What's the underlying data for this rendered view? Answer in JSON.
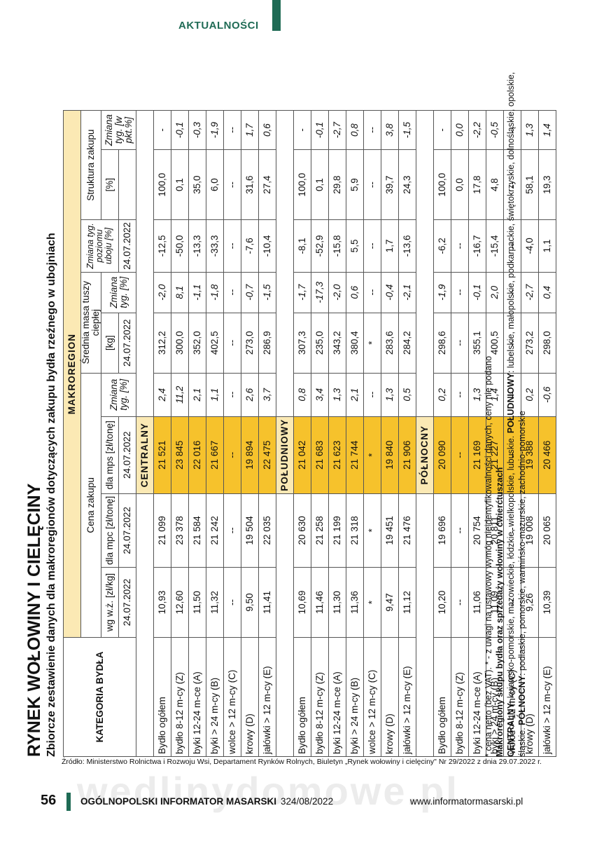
{
  "header": {
    "section": "AKTUALNOŚCI"
  },
  "title": "RYNEK WOŁOWINY I CIELĘCINY",
  "subtitle": "Zbiorcze zestawienie danych dla makroregionów dotyczących zakupu bydła rzeźnego w ubojniach",
  "table": {
    "kategoria": "KATEGORIA BYDŁA",
    "cena_zakupu": "Cena zakupu",
    "makroregion": "MAKROREGION",
    "srednia_masa": "Średnia masa tuszy ciepłej",
    "zmiana_poziomu": "Zmiana tyg. poziomu uboju [%]",
    "struktura": "Struktura zakupu",
    "col_wgwz": "wg w.ż. [zł/kg]",
    "col_mpc": "dla mpc [zł/tonę]",
    "col_mps": "dla mps [zł/tonę]",
    "col_zmiana_pct": "Zmiana tyg. [%]",
    "col_kg": "[kg]",
    "col_zmiana_tyg": "Zmiana tyg. [%]",
    "col_pct": "[%]",
    "col_zmiana_pkt": "Zmiana tyg. [w pkt.%]",
    "date": "24.07.2022",
    "regions": [
      {
        "name": "CENTRALNY",
        "rows": [
          {
            "cat": "Bydło ogółem",
            "c1": "10,93",
            "c2": "21 099",
            "c3": "21 521",
            "c4": "2,4",
            "c5": "312,2",
            "c6": "-2,0",
            "c7": "-12,5",
            "c8": "100,0",
            "c9": "-"
          },
          {
            "cat": "bydło 8-12 m-cy (Z)",
            "c1": "12,60",
            "c2": "23 378",
            "c3": "23 845",
            "c4": "11,2",
            "c5": "300,0",
            "c6": "8,1",
            "c7": "-50,0",
            "c8": "0,1",
            "c9": "-0,1"
          },
          {
            "cat": "byki 12-24 m-ce (A)",
            "c1": "11,50",
            "c2": "21 584",
            "c3": "22 016",
            "c4": "2,1",
            "c5": "352,0",
            "c6": "-1,1",
            "c7": "-13,3",
            "c8": "35,0",
            "c9": "-0,3"
          },
          {
            "cat": "byki > 24 m-cy (B)",
            "c1": "11,32",
            "c2": "21 242",
            "c3": "21 667",
            "c4": "1,1",
            "c5": "402,5",
            "c6": "-1,8",
            "c7": "-33,3",
            "c8": "6,0",
            "c9": "-1,9"
          },
          {
            "cat": "wolce > 12 m-cy (C)",
            "c1": "--",
            "c2": "--",
            "c3": "--",
            "c4": "--",
            "c5": "--",
            "c6": "--",
            "c7": "--",
            "c8": "--",
            "c9": "--"
          },
          {
            "cat": "krowy (D)",
            "c1": "9,50",
            "c2": "19 504",
            "c3": "19 894",
            "c4": "2,6",
            "c5": "273,0",
            "c6": "-0,7",
            "c7": "-7,6",
            "c8": "31,6",
            "c9": "1,7"
          },
          {
            "cat": "jałówki > 12 m-cy (E)",
            "c1": "11,41",
            "c2": "22 035",
            "c3": "22 475",
            "c4": "3,7",
            "c5": "286,9",
            "c6": "-1,5",
            "c7": "-10,4",
            "c8": "27,4",
            "c9": "0,6"
          }
        ]
      },
      {
        "name": "POŁUDNIOWY",
        "rows": [
          {
            "cat": "Bydło ogółem",
            "c1": "10,69",
            "c2": "20 630",
            "c3": "21 042",
            "c4": "0,8",
            "c5": "307,3",
            "c6": "-1,7",
            "c7": "-8,1",
            "c8": "100,0",
            "c9": "-"
          },
          {
            "cat": "bydło 8-12 m-cy (Z)",
            "c1": "11,46",
            "c2": "21 258",
            "c3": "21 683",
            "c4": "3,4",
            "c5": "235,0",
            "c6": "-17,3",
            "c7": "-52,9",
            "c8": "0,1",
            "c9": "-0,1"
          },
          {
            "cat": "byki 12-24 m-ce (A)",
            "c1": "11,30",
            "c2": "21 199",
            "c3": "21 623",
            "c4": "1,3",
            "c5": "343,2",
            "c6": "-2,0",
            "c7": "-15,8",
            "c8": "29,8",
            "c9": "-2,7"
          },
          {
            "cat": "byki > 24 m-cy (B)",
            "c1": "11,36",
            "c2": "21 318",
            "c3": "21 744",
            "c4": "2,1",
            "c5": "380,4",
            "c6": "0,6",
            "c7": "5,5",
            "c8": "5,9",
            "c9": "0,8"
          },
          {
            "cat": "wolce > 12 m-cy (C)",
            "c1": "*",
            "c2": "*",
            "c3": "*",
            "c4": "--",
            "c5": "*",
            "c6": "--",
            "c7": "--",
            "c8": "--",
            "c9": "--"
          },
          {
            "cat": "krowy (D)",
            "c1": "9,47",
            "c2": "19 451",
            "c3": "19 840",
            "c4": "1,3",
            "c5": "283,6",
            "c6": "-0,4",
            "c7": "1,7",
            "c8": "39,7",
            "c9": "3,8"
          },
          {
            "cat": "jałówki > 12 m-cy (E)",
            "c1": "11,12",
            "c2": "21 476",
            "c3": "21 906",
            "c4": "0,5",
            "c5": "284,2",
            "c6": "-2,1",
            "c7": "-13,6",
            "c8": "24,3",
            "c9": "-1,5"
          }
        ]
      },
      {
        "name": "PÓŁNOCNY",
        "rows": [
          {
            "cat": "Bydło ogółem",
            "c1": "10,20",
            "c2": "19 696",
            "c3": "20 090",
            "c4": "0,2",
            "c5": "298,6",
            "c6": "-1,9",
            "c7": "-6,2",
            "c8": "100,0",
            "c9": "-"
          },
          {
            "cat": "bydło 8-12 m-cy (Z)",
            "c1": "--",
            "c2": "--",
            "c3": "--",
            "c4": "--",
            "c5": "--",
            "c6": "--",
            "c7": "--",
            "c8": "0,0",
            "c9": "0,0"
          },
          {
            "cat": "byki 12-24 m-ce (A)",
            "c1": "11,06",
            "c2": "20 754",
            "c3": "21 169",
            "c4": "1,3",
            "c5": "355,1",
            "c6": "-0,1",
            "c7": "-16,7",
            "c8": "17,8",
            "c9": "-2,2"
          },
          {
            "cat": "byki > 24 m-cy (B)",
            "c1": "11,09",
            "c2": "20 811",
            "c3": "21 227",
            "c4": "1,4",
            "c5": "400,5",
            "c6": "2,0",
            "c7": "-15,4",
            "c8": "4,8",
            "c9": "-0,5"
          },
          {
            "cat": "wolce > 12 m-cy (C)",
            "c1": "--",
            "c2": "--",
            "c3": "--",
            "c4": "--",
            "c5": "--",
            "c6": "--",
            "c7": "--",
            "c8": "--",
            "c9": "--"
          },
          {
            "cat": "krowy (D)",
            "c1": "9,26",
            "c2": "19 008",
            "c3": "19 388",
            "c4": "0,2",
            "c5": "273,2",
            "c6": "-2,7",
            "c7": "-4,0",
            "c8": "58,1",
            "c9": "1,3"
          },
          {
            "cat": "jałówki > 12 m-cy (E)",
            "c1": "10,39",
            "c2": "20 065",
            "c3": "20 466",
            "c4": "-0,6",
            "c5": "298,0",
            "c6": "0,4",
            "c7": "1,1",
            "c8": "19,3",
            "c9": "1,4"
          }
        ]
      }
    ]
  },
  "notes": {
    "note1": "* cena netto (bez VAT). * - z uwagi na ustawowy wymóg nieidentyfikowalności danych, ceny nie podano",
    "note2": "Makroregiony skupu bydła oraz sprzedaży wołowiny w ćwierćtuszach",
    "centralny_label": "CENTRALNY:",
    "centralny_text": " kujawsko-pomorskie, mazowieckie, łódzkie, wielkopolskie, lubuskie. ",
    "poludniowy_label": "POŁUDNIOWY",
    "poludniowy_text": ": lubelskie, małopolskie, podkarpackie, świętokrzyskie, dolnośląskie, opolskie, śląskie. ",
    "polnocny_label": "PÓŁNOCNY",
    "polnocny_text": ": podlaskie, pomorskie, warmińsko-mazurskie, zachodnio-pomorskie"
  },
  "footer": {
    "source": "Źródło: Ministerstwo Rolnictwa i Rozwoju Wsi, Departament Rynków Rolnych, Biuletyn „Rynek wołowiny i cielęciny\" Nr 29/2022 z dnia 29.07.2022 r.",
    "watermark": "wedlinydomowe.pl",
    "page": "56",
    "publication": "OGÓLNOPOLSKI INFORMATOR MASARSKI",
    "issue": "324/08/2022",
    "website": "www.informatormasarski.pl"
  }
}
